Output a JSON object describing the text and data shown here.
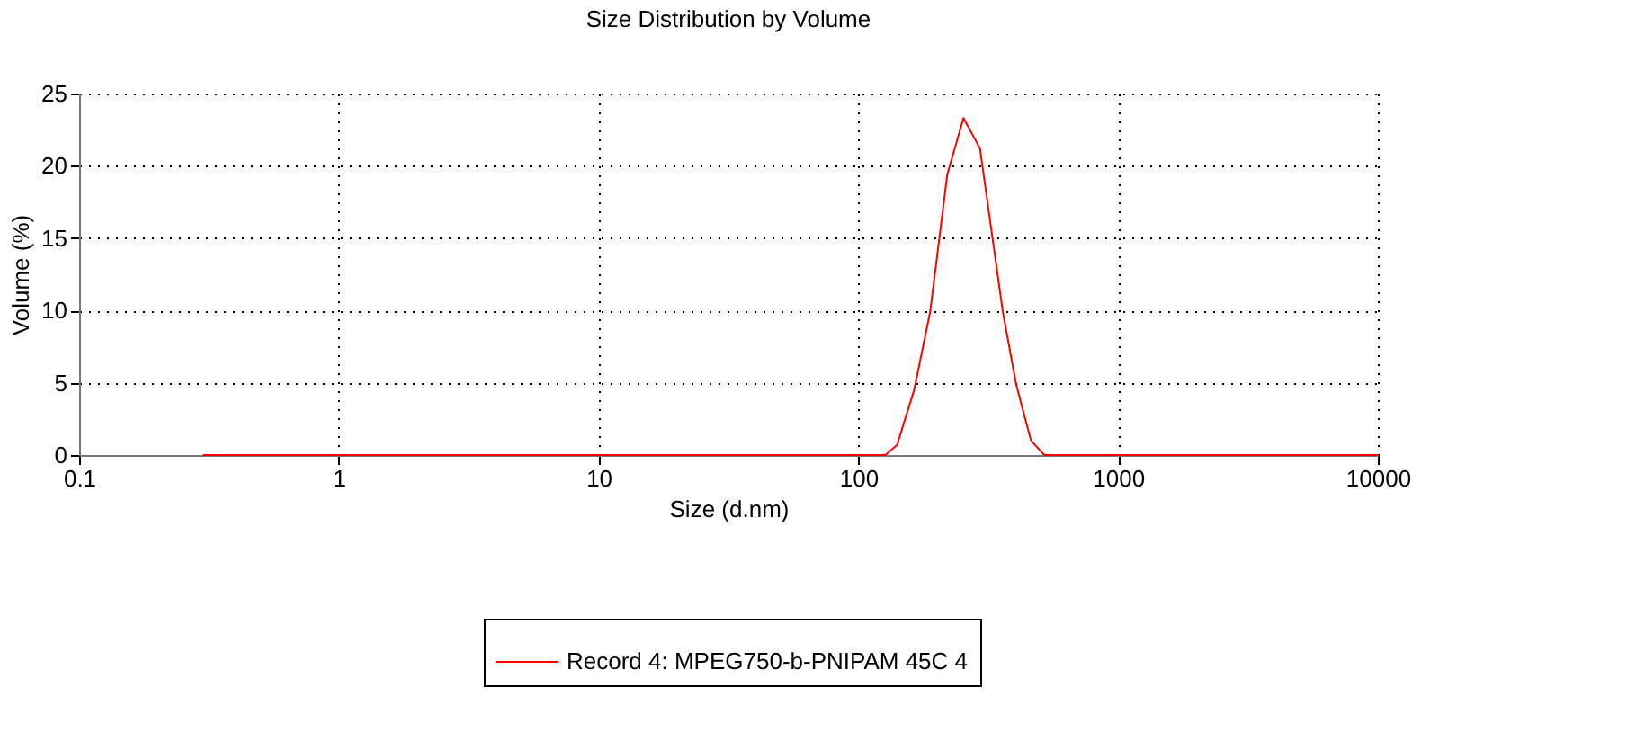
{
  "chart_data": {
    "type": "line",
    "title": "Size Distribution by Volume",
    "xlabel": "Size (d.nm)",
    "ylabel": "Volume (%)",
    "x": [
      0.3,
      127,
      141,
      164,
      189,
      220,
      254,
      294,
      360,
      405,
      462,
      520,
      10000
    ],
    "series": [
      {
        "name": "Record 4: MPEG750-b-PNIPAM 45C 4",
        "color": "#ff0000",
        "values": [
          0,
          0,
          0.7,
          4.5,
          9.9,
          19.4,
          23.3,
          21.2,
          9.9,
          4.9,
          1.0,
          0,
          0
        ]
      }
    ],
    "log": "x",
    "xlim": [
      0.1,
      10000
    ],
    "xticks": [
      0.1,
      1,
      10,
      100,
      1000,
      10000
    ],
    "ylim": [
      0,
      25
    ],
    "yticks": [
      0,
      5,
      10,
      15,
      20,
      25
    ],
    "grid": true,
    "legend": "bottom",
    "marker": "none",
    "line_style": "solid"
  }
}
